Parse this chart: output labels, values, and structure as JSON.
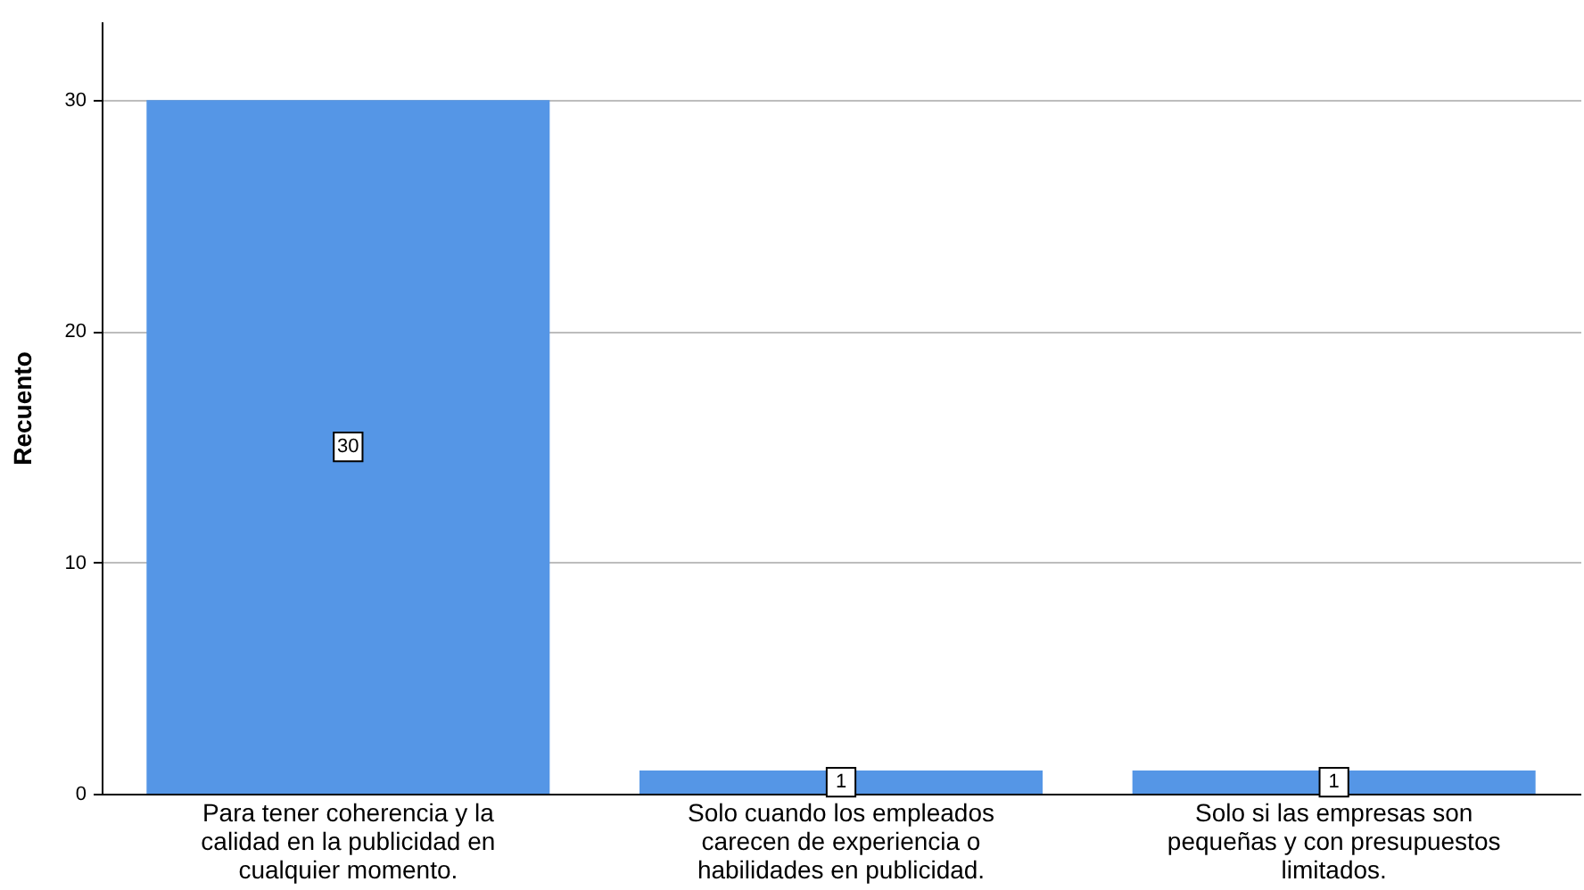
{
  "chart_data": {
    "type": "bar",
    "ylabel": "Recuento",
    "categories": [
      "Para tener coherencia y la calidad en la publicidad en cualquier momento.",
      "Solo cuando los empleados carecen de experiencia o habilidades en publicidad.",
      "Solo si las empresas son pequeñas y con presupuestos limitados."
    ],
    "values": [
      30,
      1,
      1
    ],
    "color": "#5596e6",
    "ylim": [
      0,
      33.4
    ],
    "yticks": [
      0,
      10,
      20,
      30
    ],
    "grid": "y",
    "data_labels": true
  }
}
